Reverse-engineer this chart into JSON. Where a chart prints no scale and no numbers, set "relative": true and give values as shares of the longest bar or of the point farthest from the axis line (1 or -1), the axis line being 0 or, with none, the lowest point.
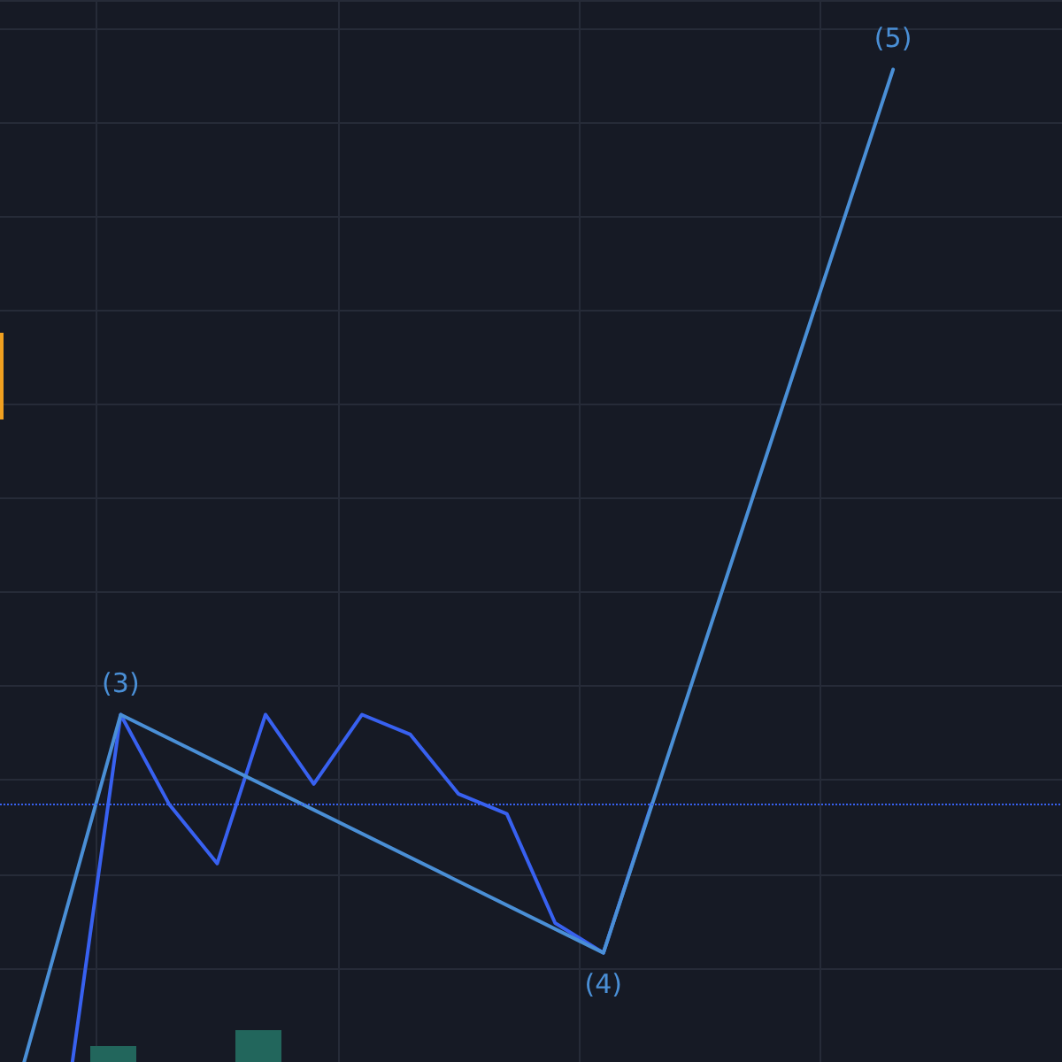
{
  "chart_data": [
    {
      "type": "line",
      "relative": true,
      "grid": true,
      "marker": "none",
      "line_style": "solid",
      "annotations": [
        {
          "text": "(3)",
          "y": 0.35
        },
        {
          "text": "(4)",
          "y": 0.11
        },
        {
          "text": "(5)",
          "y": 1
        }
      ],
      "categories": [
        null,
        null,
        null,
        null,
        null,
        null,
        null,
        null,
        null,
        null,
        null,
        null,
        null,
        null,
        null,
        null,
        null,
        null,
        null,
        null,
        null,
        null
      ],
      "series": [
        {
          "type": "line",
          "color": "#3861f0",
          "values": [
            null,
            0,
            0.35,
            0.26,
            0.2,
            0.35,
            0.28,
            0.35,
            0.33,
            0.27,
            0.25,
            0.14,
            0.11,
            0.26,
            null,
            null,
            null,
            null,
            null,
            null,
            null,
            null
          ]
        },
        {
          "type": "line",
          "color": "#4a8fd6",
          "values": [
            0,
            null,
            0.35,
            null,
            null,
            null,
            null,
            null,
            null,
            null,
            null,
            null,
            0.11,
            null,
            null,
            null,
            null,
            null,
            1,
            null,
            null,
            null
          ]
        }
      ],
      "ref_lines": [
        {
          "axis": "y",
          "value": 0.26,
          "color": "#3861f0",
          "line_style": "dotted"
        }
      ]
    },
    {
      "type": "bar",
      "relative": true,
      "categories": [
        null,
        null
      ],
      "color": "#22665c",
      "values": [
        0.5,
        1
      ]
    }
  ]
}
